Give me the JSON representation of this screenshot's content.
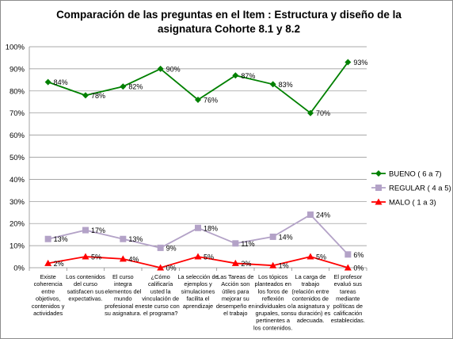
{
  "chart_data": {
    "type": "line",
    "title": "Comparación de las preguntas en el Item : Estructura y diseño de la asignatura Cohorte 8.1 y 8.2",
    "title_lines": [
      "Comparación de las preguntas en el Item : Estructura y diseño de la",
      "asignatura Cohorte 8.1 y 8.2"
    ],
    "xlabel": "",
    "ylabel": "",
    "ylim": [
      0,
      100
    ],
    "y_ticks": [
      "0%",
      "10%",
      "20%",
      "30%",
      "40%",
      "50%",
      "60%",
      "70%",
      "80%",
      "90%",
      "100%"
    ],
    "grid": true,
    "legend_position": "right",
    "categories": [
      [
        "Existe",
        "coherencia",
        "entre",
        "objetivos,",
        "contenidos y",
        "actividades"
      ],
      [
        "Los contenidos",
        "del curso",
        "satisfacen sus",
        "expectativas."
      ],
      [
        "El curso",
        "integra",
        "elementos del",
        "mundo",
        "profesional en",
        "su asignatura."
      ],
      [
        "¿Cómo",
        "calificaría",
        "usted la",
        "vinculación de",
        "este curso con",
        "el programa?"
      ],
      [
        "La selección de",
        "ejemplos y",
        "simulaciones",
        "facilita el",
        "aprendizaje"
      ],
      [
        "Las Tareas de",
        "Acción son",
        "útiles para",
        "mejorar su",
        "desempeño en",
        "el trabajo"
      ],
      [
        "Los tópicos",
        "planteados en",
        "los foros de",
        "reflexión",
        "individuales o",
        "grupales, son",
        "pertinentes a",
        "los contenidos."
      ],
      [
        "La carga de",
        "trabajo",
        "(relación entre",
        "contenidos de",
        "la asignatura y",
        "su duración) es",
        "adecuada."
      ],
      [
        "El profesor",
        "evaluó sus",
        "tareas",
        "mediante",
        "políticas de",
        "calificación",
        "establecidas."
      ]
    ],
    "series": [
      {
        "name": "BUENO ( 6 a 7)",
        "values": [
          84,
          78,
          82,
          90,
          76,
          87,
          83,
          70,
          93
        ],
        "labels": [
          "84%",
          "78%",
          "82%",
          "90%",
          "76%",
          "87%",
          "83%",
          "70%",
          "93%"
        ],
        "color": "#008000",
        "marker": "diamond"
      },
      {
        "name": "REGULAR ( 4 a 5)",
        "values": [
          13,
          17,
          13,
          9,
          18,
          11,
          14,
          24,
          6
        ],
        "labels": [
          "13%",
          "17%",
          "13%",
          "9%",
          "18%",
          "11%",
          "14%",
          "24%",
          "6%"
        ],
        "color": "#b3a2c7",
        "marker": "square"
      },
      {
        "name": "MALO ( 1 a 3)",
        "values": [
          2,
          5,
          4,
          0,
          5,
          2,
          1,
          5,
          0
        ],
        "labels": [
          "2%",
          "5%",
          "4%",
          "0%",
          "5%",
          "2%",
          "1%",
          "5%",
          "0%"
        ],
        "color": "#ff0000",
        "marker": "triangle"
      }
    ]
  }
}
